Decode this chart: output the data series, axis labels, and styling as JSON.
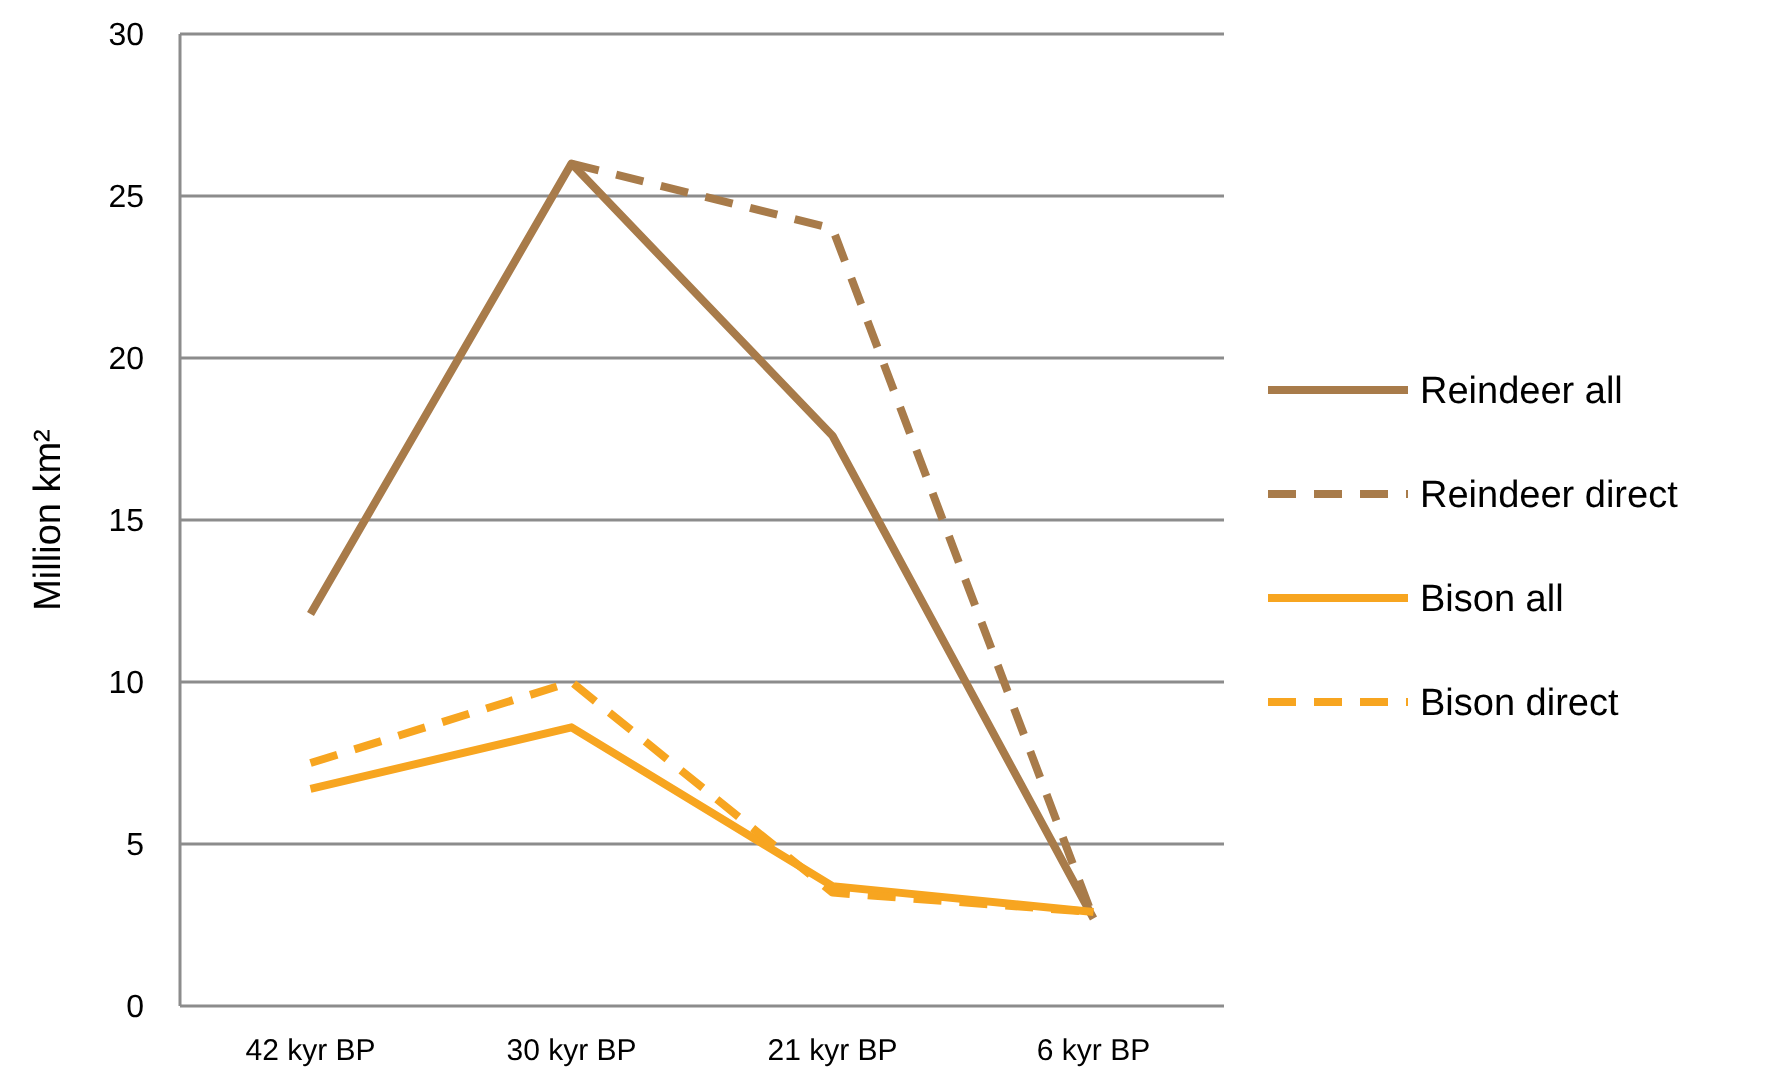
{
  "chart_data": {
    "type": "line",
    "ylabel": "Million km²",
    "categories": [
      "42 kyr BP",
      "30 kyr BP",
      "21 kyr BP",
      "6 kyr BP"
    ],
    "ylim": [
      0,
      30
    ],
    "yticks": [
      0,
      5,
      10,
      15,
      20,
      25,
      30
    ],
    "grid": "y",
    "legend": "right",
    "marker": "none",
    "series": [
      {
        "name": "Reindeer all",
        "color": "#a87b4a",
        "line_style": "solid",
        "values": [
          12.1,
          26,
          17.6,
          2.7
        ]
      },
      {
        "name": "Reindeer direct",
        "color": "#a87b4a",
        "line_style": "dashed",
        "values": [
          null,
          26,
          24,
          2.7
        ]
      },
      {
        "name": "Bison all",
        "color": "#f7a520",
        "line_style": "solid",
        "values": [
          6.7,
          8.6,
          3.7,
          2.9
        ]
      },
      {
        "name": "Bison direct",
        "color": "#f7a520",
        "line_style": "dashed",
        "values": [
          7.5,
          10,
          3.5,
          2.9
        ]
      }
    ]
  }
}
